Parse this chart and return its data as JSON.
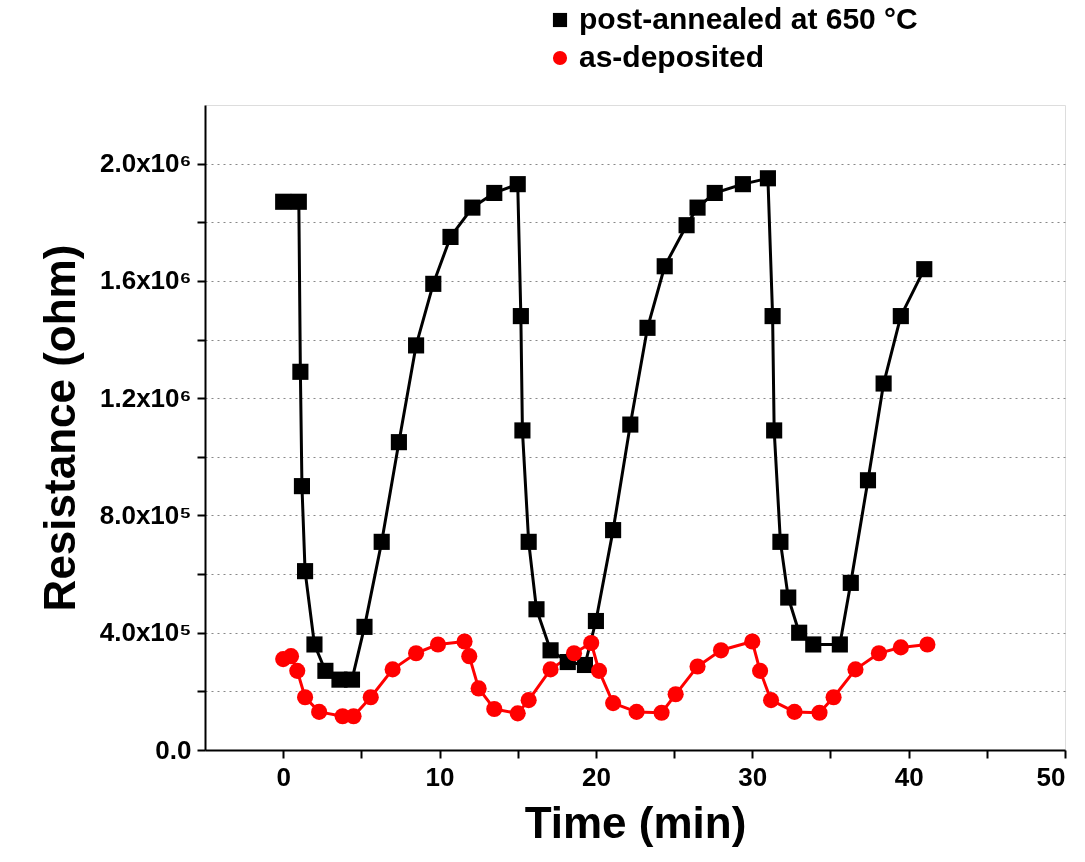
{
  "chart_data": {
    "type": "line",
    "xlabel": "Time (min)",
    "ylabel": "Resistance (ohm)",
    "xlim": [
      -5,
      50
    ],
    "ylim": [
      0,
      2200000
    ],
    "xticks": [
      0,
      {
        "value": 5,
        "label": null
      },
      10,
      {
        "value": 15,
        "label": null
      },
      20,
      {
        "value": 25,
        "label": null
      },
      30,
      {
        "value": 35,
        "label": null
      },
      40,
      {
        "value": 45,
        "label": null
      },
      50
    ],
    "yticks": [
      {
        "value": 0,
        "label": "0.0"
      },
      {
        "value": 200000,
        "label": null
      },
      {
        "value": 400000,
        "label": "4.0x10⁵"
      },
      {
        "value": 600000,
        "label": null
      },
      {
        "value": 800000,
        "label": "8.0x10⁵"
      },
      {
        "value": 1000000,
        "label": null
      },
      {
        "value": 1200000,
        "label": "1.2x10⁶"
      },
      {
        "value": 1400000,
        "label": null
      },
      {
        "value": 1600000,
        "label": "1.6x10⁶"
      },
      {
        "value": 1800000,
        "label": null
      },
      {
        "value": 2000000,
        "label": "2.0x10⁶"
      }
    ],
    "grid": "y",
    "legend": "top right",
    "line_style": "solid",
    "series": [
      {
        "name": "post-annealed at 650 °C",
        "color": "#000000",
        "marker": "square",
        "x": [
          0,
          1,
          1.1,
          1.2,
          1.4,
          2.0,
          2.7,
          3.6,
          4.4,
          5.2,
          6.3,
          7.4,
          8.5,
          9.6,
          10.7,
          12.1,
          13.5,
          15.0,
          15.2,
          15.3,
          15.7,
          16.2,
          17.1,
          18.2,
          19.3,
          20.0,
          21.1,
          22.2,
          23.3,
          24.4,
          25.8,
          26.5,
          27.6,
          29.4,
          31.0,
          31.3,
          31.4,
          31.8,
          32.3,
          33.0,
          33.9,
          35.6,
          36.3,
          37.4,
          38.4,
          39.5,
          41.0
        ],
        "values": [
          1870000,
          1870000,
          1290000,
          900000,
          610000,
          360000,
          270000,
          240000,
          240000,
          420000,
          710000,
          1050000,
          1380000,
          1590000,
          1750000,
          1850000,
          1900000,
          1930000,
          1480000,
          1090000,
          710000,
          480000,
          340000,
          300000,
          290000,
          440000,
          750000,
          1110000,
          1440000,
          1650000,
          1790000,
          1850000,
          1900000,
          1930000,
          1950000,
          1480000,
          1090000,
          710000,
          520000,
          400000,
          360000,
          360000,
          570000,
          920000,
          1250000,
          1480000,
          1640000
        ]
      },
      {
        "name": "as-deposited",
        "color": "#ff0000",
        "marker": "circle",
        "x": [
          0,
          0.5,
          0.9,
          1.4,
          2.3,
          3.8,
          4.5,
          5.6,
          7.0,
          8.5,
          9.9,
          11.6,
          11.9,
          12.5,
          13.5,
          15.0,
          15.7,
          17.1,
          18.6,
          19.7,
          20.2,
          21.1,
          22.6,
          24.2,
          25.1,
          26.5,
          28.0,
          30.0,
          30.5,
          31.2,
          32.7,
          34.3,
          35.2,
          36.6,
          38.1,
          39.5,
          41.2
        ],
        "values": [
          310000,
          320000,
          270000,
          180000,
          130000,
          115000,
          115000,
          180000,
          275000,
          330000,
          360000,
          370000,
          320000,
          210000,
          140000,
          125000,
          170000,
          275000,
          330000,
          365000,
          270000,
          160000,
          130000,
          127000,
          190000,
          285000,
          340000,
          370000,
          270000,
          170000,
          130000,
          127000,
          180000,
          275000,
          330000,
          350000,
          360000
        ]
      }
    ]
  }
}
